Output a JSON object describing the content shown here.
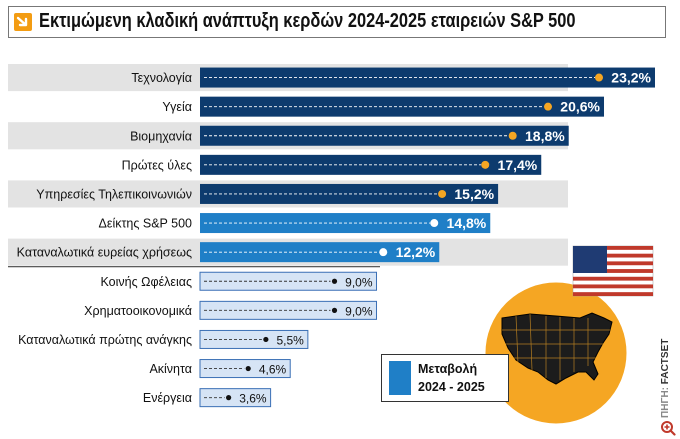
{
  "title": "Εκτιμώμενη κλαδική ανάπτυξη κερδών 2024-2025 εταιρειών S&P 500",
  "legend": {
    "line1": "Μεταβολή",
    "line2": "2024 - 2025"
  },
  "credit": {
    "prefix": "ΠΗΓΗ:",
    "source": "FACTSET"
  },
  "colors": {
    "title_icon": "#f39c12",
    "dark_bar": "#0d3b6e",
    "mid_bar": "#1f7fc7",
    "light_bar": "#d6e4f5",
    "dot_orange": "#f5a623",
    "row_shade": "#e3e3e3",
    "map_circle": "#f5a623"
  },
  "chart_data": {
    "type": "bar",
    "orientation": "horizontal",
    "unit": "%",
    "categories": [
      "Τεχνολογία",
      "Υγεία",
      "Βιομηχανία",
      "Πρώτες ύλες",
      "Υπηρεσίες Τηλεπικοινωνιών",
      "Δείκτης S&P 500",
      "Καταναλωτικά ευρείας χρήσεως",
      "Κοινής Ωφέλειας",
      "Χρηματοοικονομικά",
      "Καταναλωτικά πρώτης ανάγκης",
      "Ακίνητα",
      "Ενέργεια"
    ],
    "values": [
      23.2,
      20.6,
      18.8,
      17.4,
      15.2,
      14.8,
      12.2,
      9.0,
      9.0,
      5.5,
      4.6,
      3.6
    ],
    "labels": [
      "23,2%",
      "20,6%",
      "18,8%",
      "17,4%",
      "15,2%",
      "14,8%",
      "12,2%",
      "9,0%",
      "9,0%",
      "5,5%",
      "4,6%",
      "3,6%"
    ],
    "series": [
      {
        "name": "Μεταβολή 2024 - 2025",
        "values": [
          23.2,
          20.6,
          18.8,
          17.4,
          15.2,
          14.8,
          12.2,
          9.0,
          9.0,
          5.5,
          4.6,
          3.6
        ]
      }
    ],
    "bar_style": [
      "dark",
      "dark",
      "dark",
      "dark",
      "dark",
      "mid",
      "mid",
      "light",
      "light",
      "light",
      "light",
      "light"
    ],
    "xlim": [
      0,
      23.2
    ]
  }
}
